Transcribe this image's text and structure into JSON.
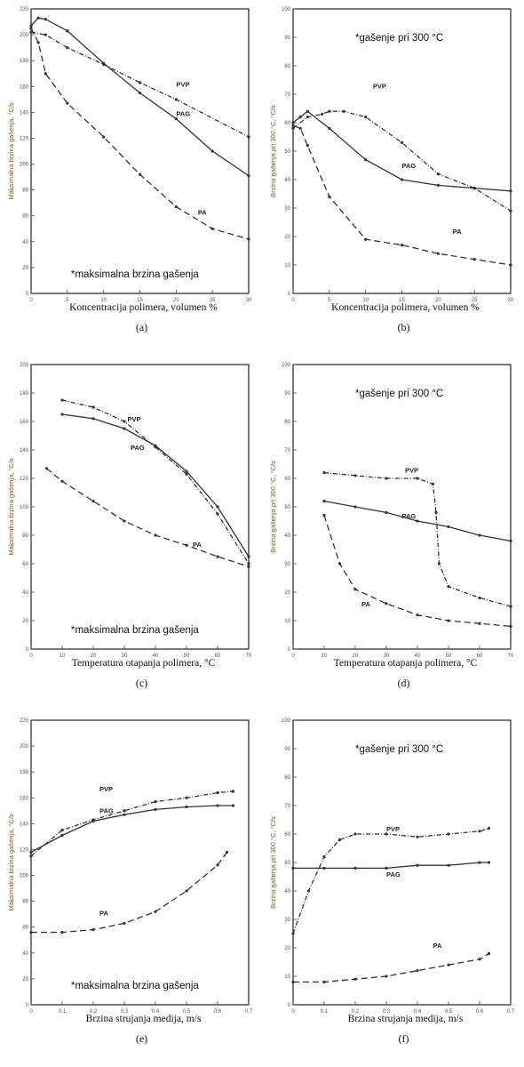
{
  "chart_data": [
    {
      "type": "line",
      "caption": "(a)",
      "xlabel": "Koncentracija polimera, volumen %",
      "ylabel": "Maksimalna brzina gašenja, °C/s",
      "annotation": "*maksimalna brzina gašenja",
      "xlim": [
        0,
        30
      ],
      "ylim": [
        0,
        220
      ],
      "xticks": [
        0,
        5,
        10,
        15,
        20,
        25,
        30
      ],
      "yticks": [
        0,
        20,
        40,
        60,
        80,
        100,
        120,
        140,
        160,
        180,
        200,
        220
      ],
      "series": [
        {
          "name": "PVP",
          "dash": "5,2,1,2",
          "label_pos": [
            20,
            160
          ],
          "x": [
            0,
            2,
            5,
            10,
            15,
            20,
            30
          ],
          "y": [
            202,
            200,
            190,
            177,
            163,
            150,
            121
          ]
        },
        {
          "name": "PAG",
          "dash": "",
          "label_pos": [
            20,
            137
          ],
          "x": [
            0,
            1,
            2,
            5,
            10,
            15,
            20,
            25,
            30
          ],
          "y": [
            207,
            213,
            212,
            203,
            178,
            155,
            135,
            110,
            91
          ]
        },
        {
          "name": "PA",
          "dash": "7,4",
          "label_pos": [
            23,
            61
          ],
          "x": [
            0,
            1,
            2,
            5,
            10,
            15,
            20,
            25,
            30
          ],
          "y": [
            205,
            194,
            170,
            147,
            121,
            92,
            67,
            50,
            42
          ]
        }
      ]
    },
    {
      "type": "line",
      "caption": "(b)",
      "xlabel": "Koncentracija polimera, volumen %",
      "ylabel": "Brzina gašenja pri 300 °C, °C/s",
      "annotation": "*gašenje pri 300 °C",
      "xlim": [
        0,
        30
      ],
      "ylim": [
        0,
        100
      ],
      "xticks": [
        0,
        5,
        10,
        15,
        20,
        25,
        30
      ],
      "yticks": [
        0,
        10,
        20,
        30,
        40,
        50,
        60,
        70,
        80,
        90,
        100
      ],
      "series": [
        {
          "name": "PVP",
          "dash": "5,2,1,2",
          "label_pos": [
            11,
            72
          ],
          "x": [
            0,
            2,
            4,
            5,
            7,
            10,
            15,
            20,
            25,
            30
          ],
          "y": [
            58,
            62,
            63,
            64,
            64,
            62,
            53,
            42,
            37,
            29
          ]
        },
        {
          "name": "PAG",
          "dash": "",
          "label_pos": [
            15,
            44
          ],
          "x": [
            0,
            1,
            2,
            5,
            10,
            15,
            20,
            25,
            30
          ],
          "y": [
            60,
            62,
            64,
            58,
            47,
            40,
            38,
            37,
            36
          ]
        },
        {
          "name": "PA",
          "dash": "7,4",
          "label_pos": [
            22,
            21
          ],
          "x": [
            0,
            1,
            2,
            5,
            10,
            15,
            20,
            25,
            30
          ],
          "y": [
            59,
            58,
            52,
            34,
            19,
            17,
            14,
            12,
            10
          ]
        }
      ]
    },
    {
      "type": "line",
      "caption": "(c)",
      "xlabel": "Temperatura otapanja polimera, °C",
      "ylabel": "Maksimalna brzina gašenja, °C/s",
      "annotation": "*maksimalna brzina gašenja",
      "xlim": [
        0,
        70
      ],
      "ylim": [
        0,
        200
      ],
      "xticks": [
        0,
        10,
        20,
        30,
        40,
        50,
        60,
        70
      ],
      "yticks": [
        0,
        20,
        40,
        60,
        80,
        100,
        120,
        140,
        160,
        180,
        200
      ],
      "series": [
        {
          "name": "PVP",
          "dash": "5,2,1,2",
          "label_pos": [
            31,
            160
          ],
          "x": [
            10,
            20,
            30,
            40,
            50,
            60,
            70
          ],
          "y": [
            175,
            170,
            160,
            142,
            123,
            95,
            60
          ]
        },
        {
          "name": "PAG",
          "dash": "",
          "label_pos": [
            32,
            140
          ],
          "x": [
            10,
            20,
            30,
            40,
            50,
            60,
            70
          ],
          "y": [
            165,
            162,
            155,
            143,
            125,
            100,
            65
          ]
        },
        {
          "name": "PA",
          "dash": "7,4",
          "label_pos": [
            52,
            72
          ],
          "x": [
            5,
            10,
            20,
            30,
            40,
            50,
            60,
            70
          ],
          "y": [
            127,
            118,
            104,
            90,
            80,
            73,
            65,
            58
          ]
        }
      ]
    },
    {
      "type": "line",
      "caption": "(d)",
      "xlabel": "Temperatura otapanja polimera, °C",
      "ylabel": "Brzina gašenja pri 300 °C, °C/s",
      "annotation": "*gašenje pri 300 °C",
      "xlim": [
        0,
        70
      ],
      "ylim": [
        0,
        100
      ],
      "xticks": [
        0,
        10,
        20,
        30,
        40,
        50,
        60,
        70
      ],
      "yticks": [
        0,
        10,
        20,
        30,
        40,
        50,
        60,
        70,
        80,
        90,
        100
      ],
      "series": [
        {
          "name": "PVP",
          "dash": "5,2,1,2",
          "label_pos": [
            36,
            62
          ],
          "x": [
            10,
            20,
            30,
            40,
            45,
            46,
            47,
            50,
            60,
            70
          ],
          "y": [
            62,
            61,
            60,
            60,
            58,
            48,
            30,
            22,
            18,
            15
          ]
        },
        {
          "name": "PAG",
          "dash": "",
          "label_pos": [
            35,
            46
          ],
          "x": [
            10,
            20,
            30,
            40,
            50,
            60,
            70
          ],
          "y": [
            52,
            50,
            48,
            45,
            43,
            40,
            38
          ]
        },
        {
          "name": "PA",
          "dash": "7,4",
          "label_pos": [
            22,
            15
          ],
          "x": [
            10,
            15,
            20,
            30,
            40,
            50,
            60,
            70
          ],
          "y": [
            47,
            30,
            21,
            16,
            12,
            10,
            9,
            8
          ]
        }
      ]
    },
    {
      "type": "line",
      "caption": "(e)",
      "xlabel": "Brzina strujanja medija, m/s",
      "ylabel": "Maksimalna brzina gašenja, °C/s",
      "annotation": "*maksimalna brzina gašenja",
      "xlim": [
        0,
        0.7
      ],
      "ylim": [
        0,
        220
      ],
      "xticks": [
        0,
        0.1,
        0.2,
        0.3,
        0.4,
        0.5,
        0.6,
        0.7
      ],
      "yticks": [
        0,
        20,
        40,
        60,
        80,
        100,
        120,
        140,
        160,
        180,
        200,
        220
      ],
      "series": [
        {
          "name": "PVP",
          "dash": "5,2,1,2",
          "label_pos": [
            0.22,
            165
          ],
          "x": [
            0,
            0.1,
            0.2,
            0.3,
            0.4,
            0.5,
            0.6,
            0.65
          ],
          "y": [
            115,
            135,
            143,
            150,
            157,
            160,
            164,
            165
          ]
        },
        {
          "name": "PAG",
          "dash": "",
          "label_pos": [
            0.22,
            148
          ],
          "x": [
            0,
            0.1,
            0.2,
            0.3,
            0.4,
            0.5,
            0.6,
            0.65
          ],
          "y": [
            118,
            131,
            142,
            147,
            151,
            153,
            154,
            154
          ]
        },
        {
          "name": "PA",
          "dash": "7,4",
          "label_pos": [
            0.22,
            69
          ],
          "x": [
            0,
            0.1,
            0.2,
            0.3,
            0.4,
            0.5,
            0.6,
            0.63
          ],
          "y": [
            56,
            56,
            58,
            63,
            72,
            88,
            108,
            118
          ]
        }
      ]
    },
    {
      "type": "line",
      "caption": "(f)",
      "xlabel": "Brzina strujanja medija, m/s",
      "ylabel": "Brzina gašenja pri 300 °C, °C/s",
      "annotation": "*gašenje pri 300 °C",
      "xlim": [
        0,
        0.7
      ],
      "ylim": [
        0,
        100
      ],
      "xticks": [
        0,
        0.1,
        0.2,
        0.3,
        0.4,
        0.5,
        0.6,
        0.7
      ],
      "yticks": [
        0,
        10,
        20,
        30,
        40,
        50,
        60,
        70,
        80,
        90,
        100
      ],
      "series": [
        {
          "name": "PVP",
          "dash": "5,2,1,2",
          "label_pos": [
            0.3,
            61
          ],
          "x": [
            0,
            0.05,
            0.1,
            0.15,
            0.2,
            0.3,
            0.4,
            0.5,
            0.6,
            0.63
          ],
          "y": [
            25,
            40,
            52,
            58,
            60,
            60,
            59,
            60,
            61,
            62
          ]
        },
        {
          "name": "PAG",
          "dash": "",
          "label_pos": [
            0.3,
            45
          ],
          "x": [
            0,
            0.1,
            0.2,
            0.3,
            0.4,
            0.5,
            0.6,
            0.63
          ],
          "y": [
            48,
            48,
            48,
            48,
            49,
            49,
            50,
            50
          ]
        },
        {
          "name": "PA",
          "dash": "7,4",
          "label_pos": [
            0.45,
            20
          ],
          "x": [
            0,
            0.1,
            0.2,
            0.3,
            0.4,
            0.5,
            0.6,
            0.63
          ],
          "y": [
            8,
            8,
            9,
            10,
            12,
            14,
            16,
            18
          ]
        }
      ]
    }
  ]
}
